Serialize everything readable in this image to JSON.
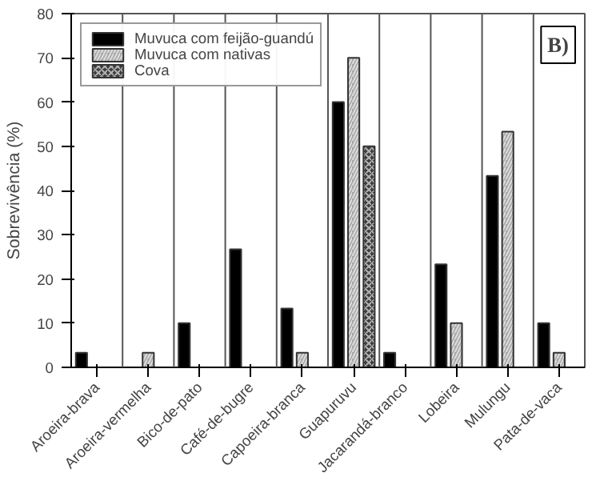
{
  "chart_data": {
    "type": "bar",
    "ylabel": "Sobrevivência (%)",
    "categories": [
      "Aroeira-brava",
      "Aroeira-vermelha",
      "Bico-de-pato",
      "Café-de-bugre",
      "Capoeira-branca",
      "Guapuruvu",
      "Jacarandá-branco",
      "Lobeira",
      "Mulungu",
      "Pata-de-vaca"
    ],
    "series": [
      {
        "name": "Muvuca com feijão-guandú",
        "color": "#000000",
        "values": [
          3.3,
          null,
          10,
          26.7,
          13.3,
          60,
          3.3,
          23.3,
          43.3,
          10
        ]
      },
      {
        "name": "Muvuca com nativas",
        "color": "#a8a8a8",
        "values": [
          null,
          3.3,
          null,
          null,
          3.3,
          70,
          null,
          10,
          53.3,
          3.3
        ]
      },
      {
        "name": "Cova",
        "color": "#3c3c3c",
        "values": [
          null,
          null,
          null,
          null,
          null,
          50,
          null,
          null,
          null,
          null
        ]
      }
    ],
    "ylim": [
      0,
      80
    ],
    "yticks": [
      0,
      10,
      20,
      30,
      40,
      50,
      60,
      70,
      80
    ],
    "grid": "x",
    "legend": "top left",
    "annotations": [
      "B)"
    ]
  }
}
